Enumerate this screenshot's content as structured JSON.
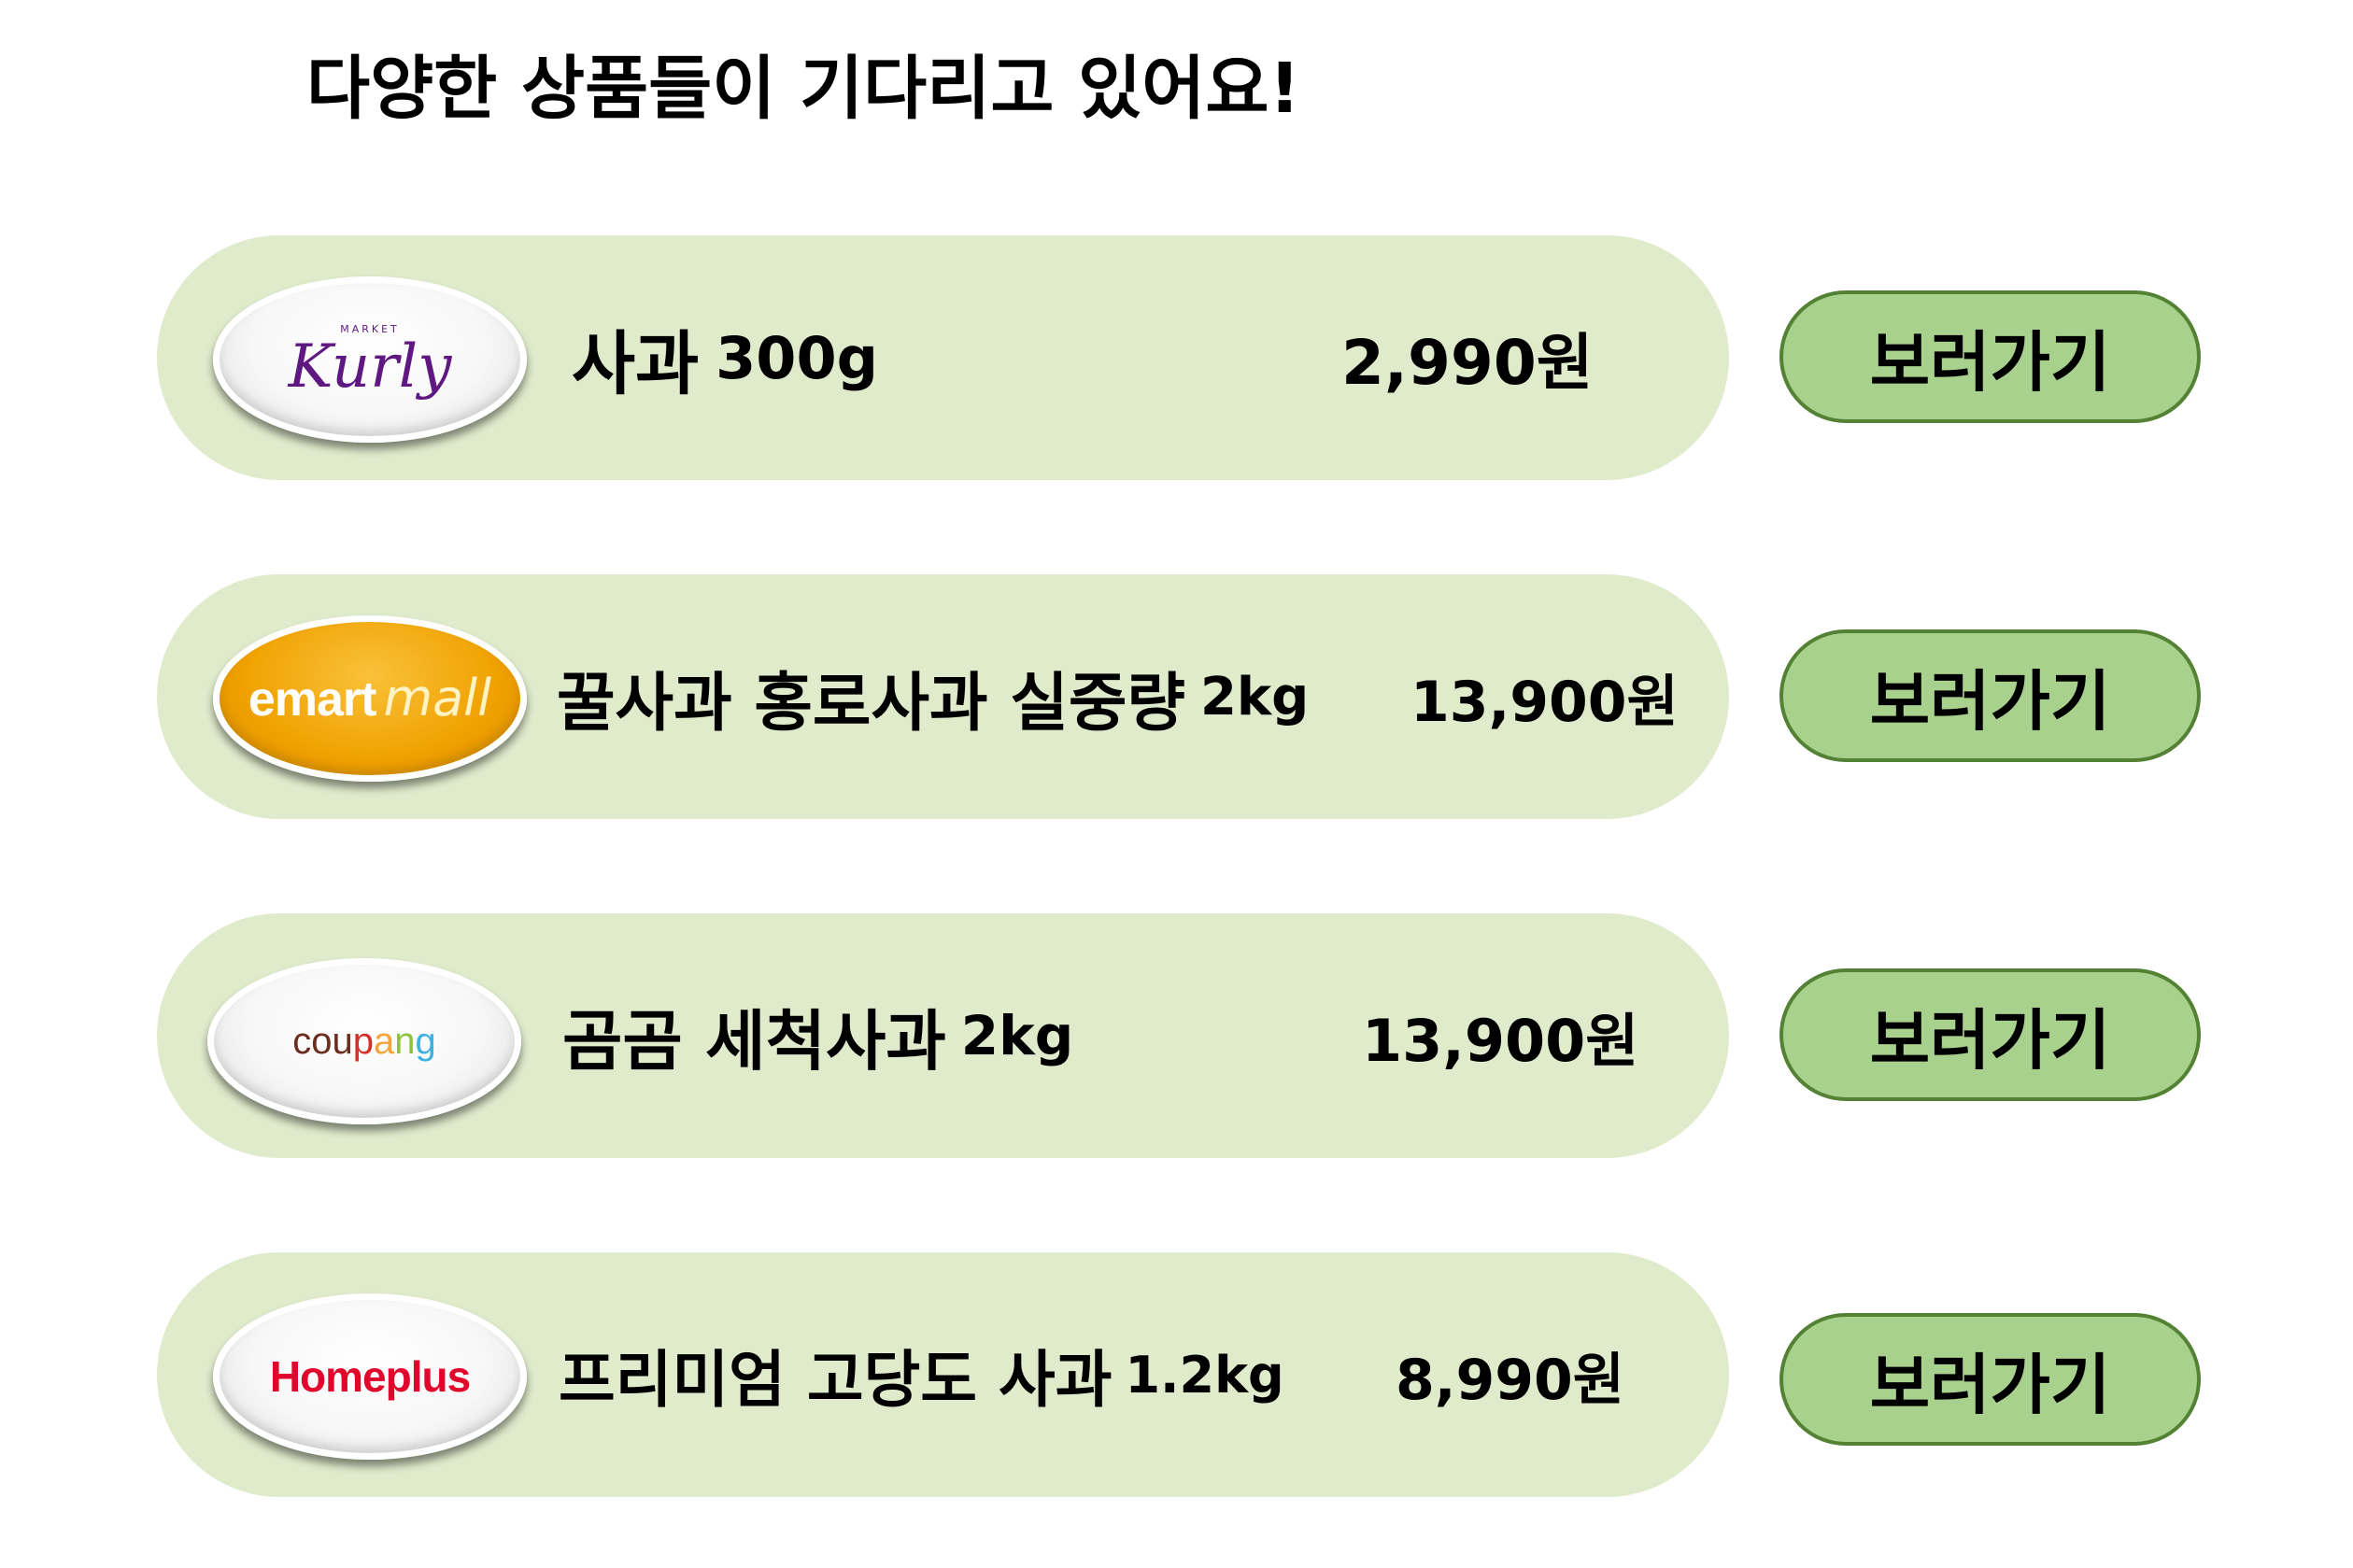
{
  "heading": "다양한 상품들이 기다리고 있어요!",
  "colors": {
    "card_background": "#e0ebcc",
    "button_background": "#a9d18e",
    "button_border": "#548235",
    "emart_orange": "#f0a100",
    "kurly_purple": "#5f1782",
    "homeplus_red": "#e1062c"
  },
  "items": [
    {
      "store": "Market Kurly",
      "logo": {
        "small": "MARKET",
        "main": "Kurly"
      },
      "name_main": "사과",
      "name_weight": "300g",
      "price": "2,990원",
      "button_label": "보러가기"
    },
    {
      "store": "emart mall",
      "logo": {
        "part1": "emart",
        "part2": "mall"
      },
      "name_main": "꿀사과 홍로사과 실중량",
      "name_weight": "2kg",
      "price": "13,900원",
      "button_label": "보러가기"
    },
    {
      "store": "coupang",
      "logo": {
        "letters": [
          "c",
          "o",
          "u",
          "p",
          "a",
          "n",
          "g"
        ]
      },
      "name_main": "곰곰 세척사과",
      "name_weight": "2kg",
      "price": "13,900원",
      "button_label": "보러가기"
    },
    {
      "store": "Homeplus",
      "logo": {
        "text": "Homeplus"
      },
      "name_main": "프리미엄 고당도 사과",
      "name_weight": "1.2kg",
      "price": "8,990원",
      "button_label": "보러가기"
    }
  ]
}
